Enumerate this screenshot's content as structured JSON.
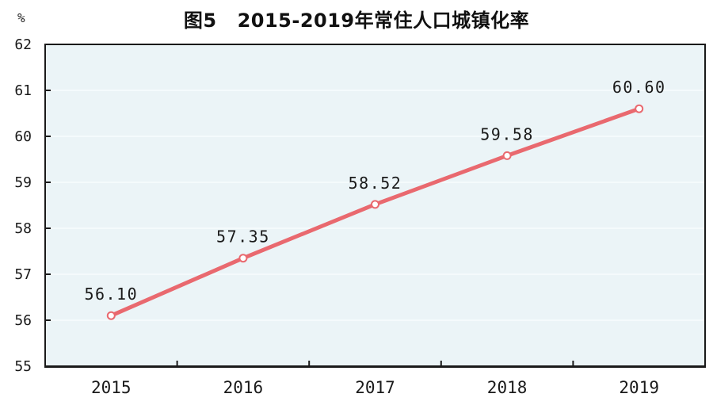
{
  "chart_data": {
    "type": "line",
    "figure_label": "图5",
    "title_text": "2015-2019年常住人口城镇化率",
    "title_full": "图5 2015-2019年常住人口城镇化率",
    "unit_label": "%",
    "categories": [
      "2015",
      "2016",
      "2017",
      "2018",
      "2019"
    ],
    "series": [
      {
        "name": "常住人口城镇化率",
        "values": [
          56.1,
          57.35,
          58.52,
          59.58,
          60.6
        ],
        "point_labels": [
          "56.10",
          "57.35",
          "58.52",
          "59.58",
          "60.60"
        ]
      }
    ],
    "ylim": [
      55,
      62
    ],
    "yticks": [
      55,
      56,
      57,
      58,
      59,
      60,
      61,
      62
    ],
    "xlabel": "",
    "ylabel": "%",
    "legend": "none",
    "grid": {
      "horizontal": true,
      "vertical": false
    },
    "colors": {
      "line": "#e9696f",
      "marker_fill": "#ffffff",
      "marker_stroke": "#e9696f",
      "plot_background": "#ebf4f7",
      "axis_border": "#1a1a1a",
      "text": "#1a1a1a",
      "gridline": "#f8fcfd"
    }
  }
}
